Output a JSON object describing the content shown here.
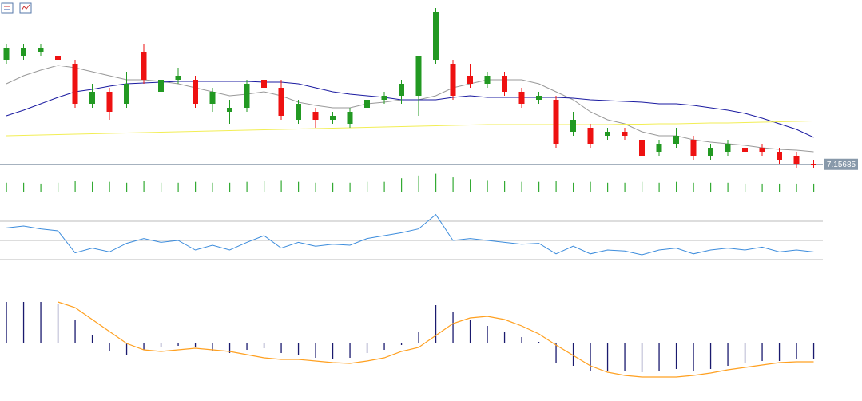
{
  "chart_data": [
    {
      "type": "candlestick",
      "open": [
        7.183,
        7.184,
        7.185,
        7.184,
        7.182,
        7.172,
        7.175,
        7.172,
        7.185,
        7.175,
        7.178,
        7.178,
        7.172,
        7.17,
        7.171,
        7.178,
        7.176,
        7.168,
        7.17,
        7.168,
        7.167,
        7.171,
        7.173,
        7.174,
        7.174,
        7.183,
        7.182,
        7.179,
        7.177,
        7.179,
        7.175,
        7.173,
        7.173,
        7.165,
        7.166,
        7.164,
        7.165,
        7.163,
        7.16,
        7.162,
        7.163,
        7.159,
        7.16,
        7.161,
        7.161,
        7.16,
        7.159,
        7.157
      ],
      "high": [
        7.187,
        7.187,
        7.187,
        7.185,
        7.183,
        7.177,
        7.176,
        7.18,
        7.187,
        7.18,
        7.181,
        7.179,
        7.176,
        7.173,
        7.178,
        7.179,
        7.178,
        7.173,
        7.171,
        7.17,
        7.171,
        7.174,
        7.175,
        7.178,
        7.184,
        7.196,
        7.183,
        7.182,
        7.18,
        7.18,
        7.176,
        7.175,
        7.174,
        7.17,
        7.167,
        7.166,
        7.166,
        7.164,
        7.163,
        7.166,
        7.164,
        7.162,
        7.163,
        7.162,
        7.162,
        7.161,
        7.16,
        7.158
      ],
      "low": [
        7.182,
        7.183,
        7.184,
        7.182,
        7.171,
        7.171,
        7.168,
        7.171,
        7.177,
        7.174,
        7.177,
        7.171,
        7.17,
        7.167,
        7.17,
        7.175,
        7.168,
        7.167,
        7.166,
        7.167,
        7.166,
        7.17,
        7.172,
        7.172,
        7.169,
        7.182,
        7.173,
        7.176,
        7.176,
        7.174,
        7.171,
        7.172,
        7.161,
        7.164,
        7.161,
        7.163,
        7.163,
        7.158,
        7.159,
        7.161,
        7.158,
        7.158,
        7.159,
        7.159,
        7.159,
        7.157,
        7.156,
        7.156
      ],
      "close": [
        7.186,
        7.186,
        7.186,
        7.183,
        7.172,
        7.175,
        7.17,
        7.177,
        7.178,
        7.178,
        7.179,
        7.172,
        7.175,
        7.171,
        7.177,
        7.176,
        7.169,
        7.172,
        7.168,
        7.169,
        7.17,
        7.173,
        7.174,
        7.177,
        7.184,
        7.195,
        7.174,
        7.177,
        7.179,
        7.175,
        7.172,
        7.174,
        7.162,
        7.168,
        7.162,
        7.165,
        7.164,
        7.159,
        7.162,
        7.164,
        7.159,
        7.161,
        7.162,
        7.16,
        7.16,
        7.158,
        7.157,
        7.15685
      ],
      "up_color": "#229922",
      "down_color": "#ee1111",
      "ylim": [
        7.15,
        7.198
      ],
      "last_price": 7.15685,
      "last_price_color": "#8899aa",
      "series": [
        {
          "color": "#999999",
          "values": [
            7.177,
            7.179,
            7.1804,
            7.1816,
            7.181,
            7.18,
            7.179,
            7.178,
            7.178,
            7.1776,
            7.177,
            7.176,
            7.175,
            7.174,
            7.1744,
            7.175,
            7.174,
            7.1724,
            7.1716,
            7.171,
            7.171,
            7.172,
            7.1724,
            7.173,
            7.173,
            7.174,
            7.176,
            7.177,
            7.178,
            7.178,
            7.178,
            7.177,
            7.175,
            7.173,
            7.17,
            7.168,
            7.167,
            7.165,
            7.164,
            7.164,
            7.163,
            7.1624,
            7.162,
            7.1616,
            7.161,
            7.1606,
            7.1604,
            7.16
          ]
        },
        {
          "color": "#1a1aa0",
          "values": [
            7.169,
            7.1704,
            7.172,
            7.1736,
            7.175,
            7.1756,
            7.1764,
            7.177,
            7.1772,
            7.1774,
            7.1776,
            7.1776,
            7.1776,
            7.1776,
            7.1776,
            7.1774,
            7.1774,
            7.177,
            7.176,
            7.175,
            7.1744,
            7.174,
            7.1736,
            7.173,
            7.173,
            7.173,
            7.1736,
            7.174,
            7.1736,
            7.1736,
            7.1736,
            7.1736,
            7.1736,
            7.1734,
            7.173,
            7.1728,
            7.1726,
            7.1724,
            7.172,
            7.172,
            7.1716,
            7.171,
            7.1704,
            7.1696,
            7.1684,
            7.167,
            7.1656,
            7.1636
          ]
        },
        {
          "color": "#f2ee55",
          "values": [
            7.164,
            7.1641,
            7.1642,
            7.1643,
            7.1644,
            7.1645,
            7.1646,
            7.1647,
            7.1648,
            7.1649,
            7.165,
            7.1651,
            7.1652,
            7.1653,
            7.1654,
            7.1655,
            7.1656,
            7.1657,
            7.1658,
            7.1659,
            7.166,
            7.1661,
            7.1662,
            7.1663,
            7.1664,
            7.1665,
            7.1666,
            7.1667,
            7.1668,
            7.1668,
            7.1668,
            7.1668,
            7.1668,
            7.1668,
            7.1668,
            7.1668,
            7.1669,
            7.1669,
            7.167,
            7.167,
            7.1671,
            7.1672,
            7.1672,
            7.1673,
            7.1674,
            7.1675,
            7.1676,
            7.1677
          ]
        }
      ]
    },
    {
      "type": "bar",
      "color": "#33aa33",
      "ylim": [
        0,
        25
      ],
      "values": [
        10,
        10,
        9,
        10,
        12,
        11,
        11,
        10,
        12,
        10,
        10,
        11,
        10,
        10,
        11,
        12,
        13,
        11,
        10,
        10,
        10,
        11,
        11,
        15,
        18,
        20,
        16,
        14,
        13,
        12,
        11,
        11,
        12,
        10,
        11,
        10,
        10,
        11,
        10,
        11,
        10,
        10,
        10,
        9,
        9,
        9,
        9,
        9
      ]
    },
    {
      "type": "line",
      "color": "#3c8cdc",
      "ylim": [
        20,
        90
      ],
      "levels": [
        30,
        50,
        70
      ],
      "level_color": "#bbbbbb",
      "values": [
        63,
        65,
        62,
        60,
        37,
        42,
        38,
        47,
        52,
        48,
        50,
        40,
        45,
        40,
        48,
        55,
        42,
        48,
        44,
        46,
        45,
        52,
        55,
        58,
        62,
        77,
        50,
        52,
        50,
        48,
        46,
        47,
        36,
        44,
        36,
        40,
        39,
        35,
        40,
        42,
        36,
        40,
        42,
        40,
        43,
        38,
        40,
        38
      ]
    },
    {
      "type": "macd",
      "color": "#1a1a6e",
      "ylim": [
        -0.005,
        0.0085
      ],
      "values": [
        0.0052,
        0.0052,
        0.0052,
        0.005,
        0.003,
        0.001,
        -0.001,
        -0.0015,
        -0.0008,
        -0.0005,
        -0.0003,
        -0.0005,
        -0.001,
        -0.0012,
        -0.0008,
        -0.0006,
        -0.0012,
        -0.0014,
        -0.0018,
        -0.002,
        -0.0018,
        -0.0012,
        -0.0008,
        -0.0002,
        0.0015,
        0.0048,
        0.004,
        0.003,
        0.0022,
        0.0015,
        0.0008,
        0.0002,
        -0.0025,
        -0.0028,
        -0.0035,
        -0.0035,
        -0.0034,
        -0.0036,
        -0.0035,
        -0.0032,
        -0.0035,
        -0.0032,
        -0.0028,
        -0.0025,
        -0.0022,
        -0.0022,
        -0.002,
        -0.002
      ],
      "signal": {
        "color": "#ffa020",
        "values": [
          null,
          null,
          null,
          0.0052,
          0.0045,
          0.003,
          0.0015,
          0.0,
          -0.0008,
          -0.001,
          -0.0008,
          -0.0006,
          -0.0008,
          -0.001,
          -0.0014,
          -0.0018,
          -0.002,
          -0.002,
          -0.0022,
          -0.0024,
          -0.0025,
          -0.0022,
          -0.0018,
          -0.001,
          -0.0005,
          0.001,
          0.0025,
          0.0032,
          0.0034,
          0.003,
          0.0022,
          0.0012,
          -0.0002,
          -0.0015,
          -0.0028,
          -0.0036,
          -0.004,
          -0.0042,
          -0.0042,
          -0.0042,
          -0.004,
          -0.0037,
          -0.0033,
          -0.003,
          -0.0027,
          -0.0024,
          -0.0023,
          -0.0023
        ]
      }
    }
  ]
}
